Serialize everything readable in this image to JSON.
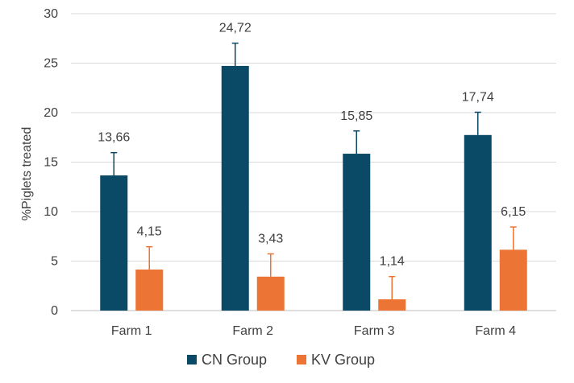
{
  "chart_data": {
    "type": "bar",
    "title": "",
    "xlabel": "",
    "ylabel": "%Piglets treated",
    "ylim": [
      0,
      30
    ],
    "yticks": [
      0,
      5,
      10,
      15,
      20,
      25,
      30
    ],
    "grid": true,
    "legend_position": "bottom",
    "categories": [
      "Farm 1",
      "Farm 2",
      "Farm 3",
      "Farm 4"
    ],
    "series": [
      {
        "name": "CN Group",
        "color": "#0b4a66",
        "values": [
          13.66,
          24.72,
          15.85,
          17.74
        ],
        "labels": [
          "13,66",
          "24,72",
          "15,85",
          "17,74"
        ],
        "error_plus": [
          2.3,
          2.3,
          2.3,
          2.3
        ]
      },
      {
        "name": "KV Group",
        "color": "#ec7434",
        "values": [
          4.15,
          3.43,
          1.14,
          6.15
        ],
        "labels": [
          "4,15",
          "3,43",
          "1,14",
          "6,15"
        ],
        "error_plus": [
          2.3,
          2.3,
          2.3,
          2.3
        ]
      }
    ],
    "colors": {
      "grid": "#d9d9d9",
      "axis": "#bfbfbf",
      "error_bar": "#0b4a66",
      "error_bar_kv": "#ec7434",
      "text": "#404040"
    }
  }
}
